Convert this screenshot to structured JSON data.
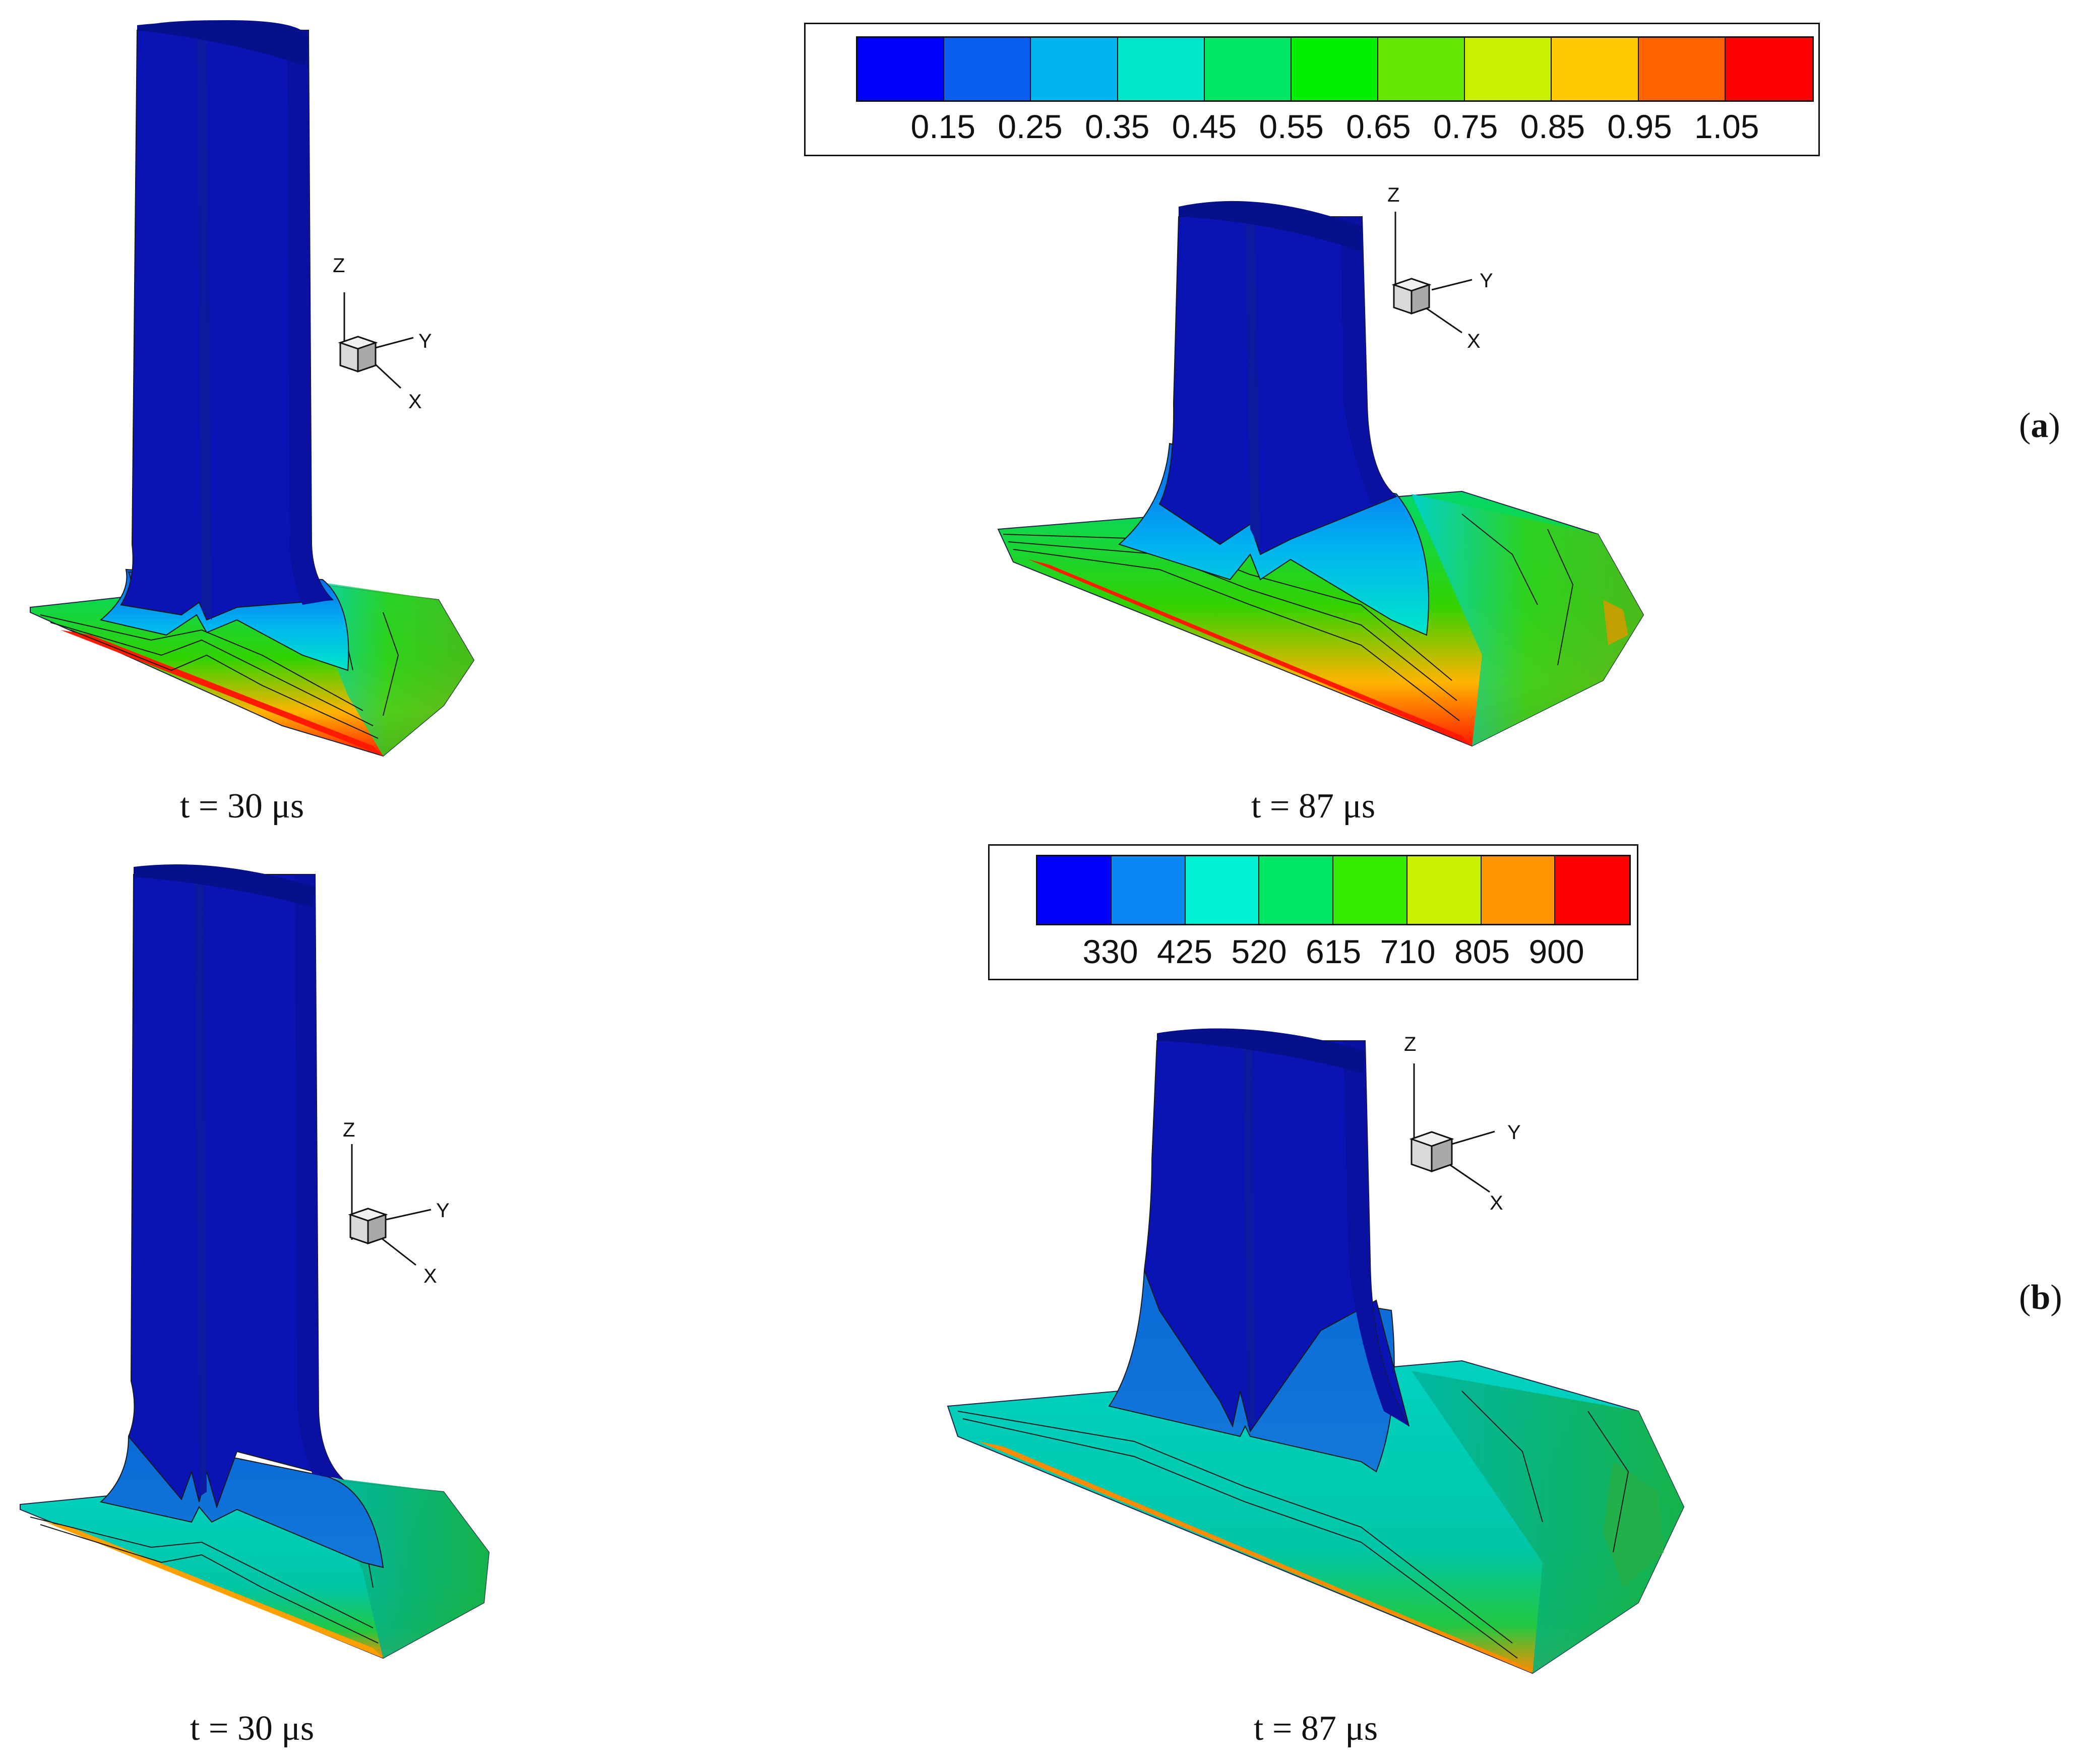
{
  "panels": [
    {
      "label_letter": "a",
      "colorbar": {
        "colors": [
          "#0000ff",
          "#0a5ff0",
          "#00b4f0",
          "#00e6c8",
          "#00e664",
          "#00f000",
          "#64e600",
          "#c8f000",
          "#ffc800",
          "#ff6400",
          "#ff0000"
        ],
        "ticks": [
          "0.15",
          "0.25",
          "0.35",
          "0.45",
          "0.55",
          "0.65",
          "0.75",
          "0.85",
          "0.95",
          "1.05"
        ]
      },
      "snapshots": [
        {
          "caption": "t = 30 μs"
        },
        {
          "caption": "t = 87 μs"
        }
      ]
    },
    {
      "label_letter": "b",
      "colorbar": {
        "colors": [
          "#0000ff",
          "#0a87f5",
          "#00f0d2",
          "#00e664",
          "#32eb00",
          "#c8f000",
          "#ff9600",
          "#ff0000"
        ],
        "ticks": [
          "330",
          "425",
          "520",
          "615",
          "710",
          "805",
          "900"
        ]
      },
      "snapshots": [
        {
          "caption": "t = 30 μs"
        },
        {
          "caption": "t = 87 μs"
        }
      ]
    }
  ],
  "axis_triad": {
    "x": "X",
    "y": "Y",
    "z": "Z"
  },
  "colors": {
    "column": "#0a14b4",
    "column_top": "#06108c",
    "column_shade": "#0c1aa0"
  }
}
